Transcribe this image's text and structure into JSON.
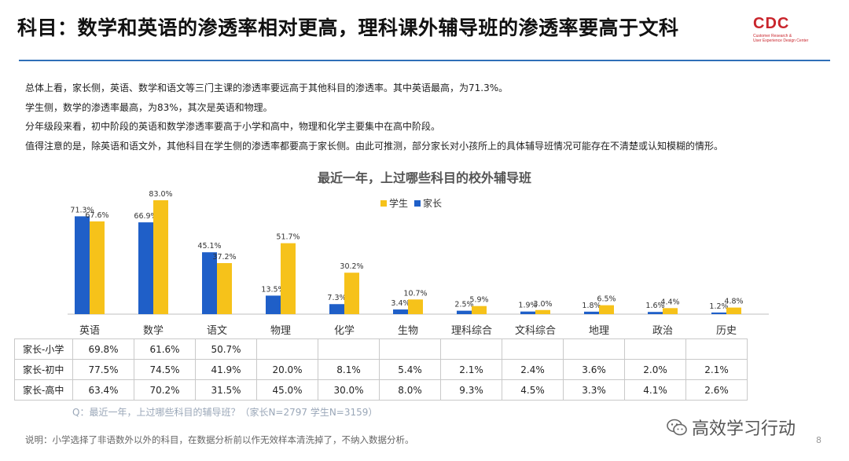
{
  "header": {
    "title": "科目：数学和英语的渗透率相对更高，理科课外辅导班的渗透率要高于文科",
    "logo_text": "CDC",
    "logo_sub1": "Customer Research &",
    "logo_sub2": "User Experience Design Center"
  },
  "summary": [
    "总体上看，家长侧，英语、数学和语文等三门主课的渗透率要远高于其他科目的渗透率。其中英语最高，为71.3%。",
    "学生侧，数学的渗透率最高，为83%，其次是英语和物理。",
    "分年级段来看，初中阶段的英语和数学渗透率要高于小学和高中，物理和化学主要集中在高中阶段。",
    "值得注意的是，除英语和语文外，其他科目在学生侧的渗透率都要高于家长侧。由此可推测，部分家长对小孩所上的具体辅导班情况可能存在不清楚或认知模糊的情形。"
  ],
  "chart_data": {
    "type": "bar",
    "title": "最近一年，上过哪些科目的校外辅导班",
    "categories": [
      "英语",
      "数学",
      "语文",
      "物理",
      "化学",
      "生物",
      "理科综合",
      "文科综合",
      "地理",
      "政治",
      "历史"
    ],
    "series": [
      {
        "name": "家长",
        "color": "#1f5fc8",
        "values": [
          71.3,
          66.9,
          45.1,
          13.5,
          7.3,
          3.4,
          2.5,
          1.9,
          1.8,
          1.6,
          1.2
        ],
        "labels": [
          "71.3%",
          "66.9%",
          "45.1%",
          "13.5%",
          "7.3%",
          "3.4%",
          "2.5%",
          "1.9%",
          "1.8%",
          "1.6%",
          "1.2%"
        ]
      },
      {
        "name": "学生",
        "color": "#f6c21a",
        "values": [
          67.6,
          83.0,
          37.2,
          51.7,
          30.2,
          10.7,
          5.9,
          3.0,
          6.5,
          4.4,
          4.8
        ],
        "labels": [
          "67.6%",
          "83.0%",
          "37.2%",
          "51.7%",
          "30.2%",
          "10.7%",
          "5.9%",
          "3.0%",
          "6.5%",
          "4.4%",
          "4.8%"
        ]
      }
    ],
    "legend_order": [
      "学生",
      "家长"
    ],
    "legend_position": "top-center",
    "grid": false,
    "ylim": [
      0,
      90
    ]
  },
  "table": {
    "rows": [
      {
        "label": "家长-小学",
        "cells": [
          "69.8%",
          "61.6%",
          "50.7%",
          "",
          "",
          "",
          "",
          "",
          "",
          "",
          ""
        ]
      },
      {
        "label": "家长-初中",
        "cells": [
          "77.5%",
          "74.5%",
          "41.9%",
          "20.0%",
          "8.1%",
          "5.4%",
          "2.1%",
          "2.4%",
          "3.6%",
          "2.0%",
          "2.1%"
        ]
      },
      {
        "label": "家长-高中",
        "cells": [
          "63.4%",
          "70.2%",
          "31.5%",
          "45.0%",
          "30.0%",
          "8.0%",
          "9.3%",
          "4.5%",
          "3.3%",
          "4.1%",
          "2.6%"
        ]
      }
    ]
  },
  "footer": {
    "question": "Q：最近一年，上过哪些科目的辅导班？（家长N=2797      学生N=3159）",
    "note": "说明：小学选择了非语数外以外的科目，在数据分析前以作无效样本清洗掉了，不纳入数据分析。",
    "watermark": "高效学习行动",
    "page_number": "8"
  }
}
